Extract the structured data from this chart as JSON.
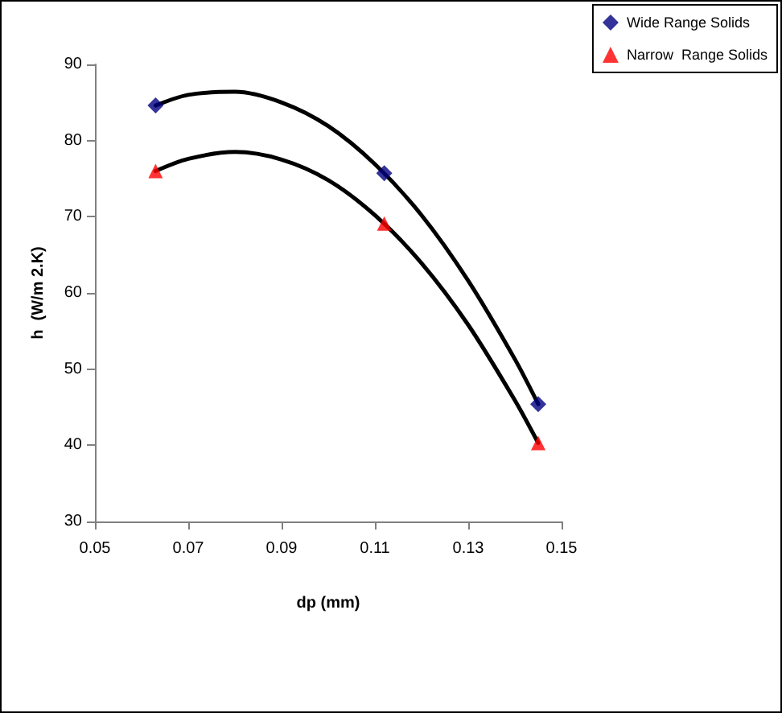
{
  "chart_data": {
    "type": "scatter",
    "xlabel": "dp (mm)",
    "ylabel": "h  (W/m 2.K)",
    "xlim": [
      0.05,
      0.15
    ],
    "xticks": [
      0.05,
      0.07,
      0.09,
      0.11,
      0.13,
      0.15
    ],
    "ylim": [
      30,
      90
    ],
    "yticks": [
      30,
      40,
      50,
      60,
      70,
      80,
      90
    ],
    "grid": false,
    "legend": "top right",
    "series": [
      {
        "name": "Wide Range Solids",
        "marker": "diamond",
        "color": "#000080",
        "x": [
          0.063,
          0.112,
          0.145
        ],
        "values": [
          84.6,
          75.7,
          45.4
        ]
      },
      {
        "name": "Narrow  Range Solids",
        "marker": "triangle",
        "color": "#ff0000",
        "x": [
          0.063,
          0.112,
          0.145
        ],
        "values": [
          76.0,
          69.1,
          40.3
        ]
      },
      {
        "type": "line",
        "marker": "none",
        "color": "#000000",
        "x": [
          0.063,
          0.07,
          0.08,
          0.09,
          0.1,
          0.11,
          0.12,
          0.13,
          0.14,
          0.145
        ],
        "values": [
          84.6,
          86.0,
          86.4,
          85.0,
          81.9,
          76.9,
          70.2,
          61.6,
          51.3,
          45.4
        ]
      },
      {
        "type": "line",
        "marker": "none",
        "color": "#000000",
        "x": [
          0.063,
          0.07,
          0.08,
          0.09,
          0.1,
          0.11,
          0.12,
          0.13,
          0.14,
          0.145
        ],
        "values": [
          76.0,
          77.6,
          78.5,
          77.5,
          74.8,
          70.2,
          63.9,
          55.8,
          45.9,
          40.3
        ]
      }
    ]
  }
}
